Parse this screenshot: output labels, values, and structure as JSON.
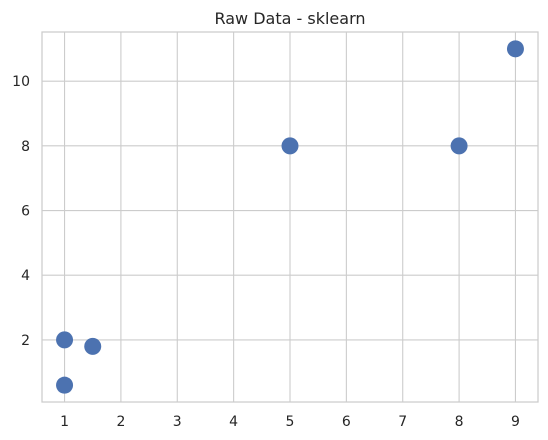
{
  "chart_data": {
    "type": "scatter",
    "title": "Raw Data - sklearn",
    "xlabel": "",
    "ylabel": "",
    "x": [
      1,
      1.5,
      5,
      8,
      1,
      9
    ],
    "y": [
      2,
      1.8,
      8,
      8,
      0.6,
      11
    ],
    "xlim": [
      0.6,
      9.4
    ],
    "ylim": [
      0.08,
      11.52
    ],
    "xticks": [
      1,
      2,
      3,
      4,
      5,
      6,
      7,
      8,
      9
    ],
    "yticks": [
      2,
      4,
      6,
      8,
      10
    ],
    "grid": true,
    "marker_color": "#4c72b0",
    "grid_color": "#cccccc"
  }
}
